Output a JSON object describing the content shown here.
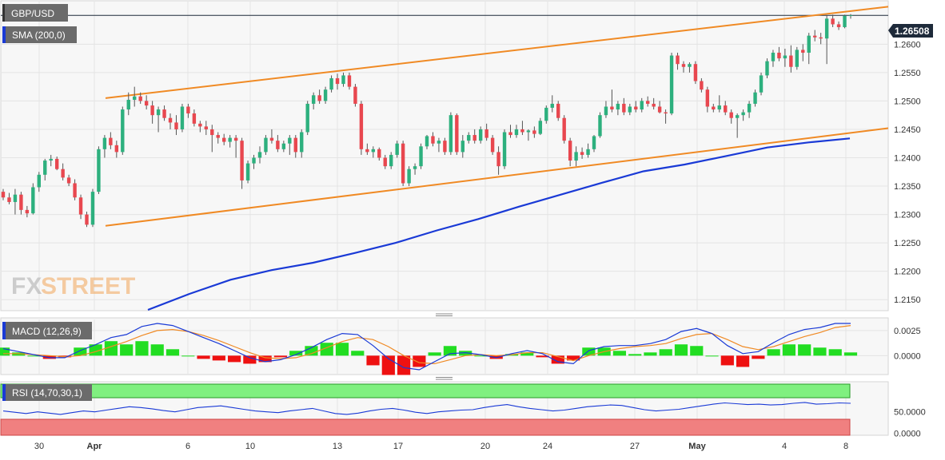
{
  "symbol": "GBP/USD",
  "overlay_label": "SMA (200,0)",
  "macd_label": "MACD (12,26,9)",
  "rsi_label": "RSI (14,70,30,1)",
  "watermark": {
    "text_fx": "FX",
    "text_street": "STREET"
  },
  "colors": {
    "up": "#2db07e",
    "down": "#e8474f",
    "wick": "#555555",
    "sma": "#1a3ad6",
    "channel": "#f08a24",
    "macd_line": "#1a3ad6",
    "signal_line": "#f08a24",
    "hist_pos": "#22dd22",
    "hist_neg": "#ee1111",
    "rsi_line": "#1a3ad6",
    "overbought_zone": "#80f080",
    "oversold_zone": "#f08080",
    "label_bg": "#6b6b6b",
    "price_tag": "#1e2a3a"
  },
  "chart_data": [
    {
      "type": "candlestick",
      "title": "GBP/USD",
      "overlay": "SMA (200,0)",
      "x_tick_labels": [
        "30",
        "Apr",
        "6",
        "10",
        "13",
        "17",
        "20",
        "24",
        "27",
        "May",
        "4",
        "8"
      ],
      "y_ticks": [
        "1.2150",
        "1.2200",
        "1.2250",
        "1.2300",
        "1.2350",
        "1.2400",
        "1.2450",
        "1.2500",
        "1.2550",
        "1.2600"
      ],
      "ylim": [
        1.2132,
        1.2675
      ],
      "last_price": "1.26508",
      "sma_200": [
        1.2132,
        1.216,
        1.2185,
        1.2202,
        1.2215,
        1.2232,
        1.225,
        1.2272,
        1.2292,
        1.2314,
        1.2335,
        1.2356,
        1.2376,
        1.2388,
        1.2403,
        1.2418,
        1.2427,
        1.2434
      ],
      "channel_upper": [
        [
          1.2505,
          1.2666
        ]
      ],
      "channel_lower": [
        [
          1.228,
          1.2452
        ]
      ],
      "candles": [
        [
          1.234,
          1.2345,
          1.2325,
          1.233
        ],
        [
          1.233,
          1.2338,
          1.2318,
          1.2322
        ],
        [
          1.2322,
          1.2345,
          1.23,
          1.2335
        ],
        [
          1.2335,
          1.234,
          1.23,
          1.2308
        ],
        [
          1.2308,
          1.2315,
          1.2295,
          1.2302
        ],
        [
          1.2302,
          1.2355,
          1.23,
          1.2348
        ],
        [
          1.2348,
          1.2375,
          1.234,
          1.237
        ],
        [
          1.237,
          1.2398,
          1.236,
          1.2395
        ],
        [
          1.2395,
          1.2405,
          1.2385,
          1.2398
        ],
        [
          1.2398,
          1.2402,
          1.2378,
          1.238
        ],
        [
          1.238,
          1.239,
          1.236,
          1.2365
        ],
        [
          1.2365,
          1.237,
          1.235,
          1.2355
        ],
        [
          1.2355,
          1.2362,
          1.2325,
          1.233
        ],
        [
          1.233,
          1.2335,
          1.2292,
          1.23
        ],
        [
          1.23,
          1.2305,
          1.2278,
          1.2282
        ],
        [
          1.2282,
          1.2345,
          1.2278,
          1.234
        ],
        [
          1.234,
          1.242,
          1.2336,
          1.2415
        ],
        [
          1.2415,
          1.244,
          1.24,
          1.2435
        ],
        [
          1.2435,
          1.2445,
          1.2415,
          1.2422
        ],
        [
          1.2422,
          1.243,
          1.24,
          1.241
        ],
        [
          1.241,
          1.249,
          1.2405,
          1.2485
        ],
        [
          1.2485,
          1.2515,
          1.2475,
          1.2502
        ],
        [
          1.2502,
          1.2525,
          1.249,
          1.2508
        ],
        [
          1.2508,
          1.2515,
          1.2495,
          1.25
        ],
        [
          1.25,
          1.251,
          1.2485,
          1.2492
        ],
        [
          1.2492,
          1.25,
          1.246,
          1.2475
        ],
        [
          1.2475,
          1.249,
          1.2445,
          1.2485
        ],
        [
          1.2485,
          1.2492,
          1.2465,
          1.247
        ],
        [
          1.247,
          1.2478,
          1.245,
          1.2462
        ],
        [
          1.2462,
          1.2475,
          1.244,
          1.245
        ],
        [
          1.245,
          1.2495,
          1.2445,
          1.249
        ],
        [
          1.249,
          1.2495,
          1.247,
          1.2478
        ],
        [
          1.2478,
          1.2485,
          1.2455,
          1.246
        ],
        [
          1.246,
          1.2465,
          1.2445,
          1.2455
        ],
        [
          1.2455,
          1.2465,
          1.244,
          1.245
        ],
        [
          1.245,
          1.2458,
          1.241,
          1.244
        ],
        [
          1.244,
          1.2445,
          1.2425,
          1.2435
        ],
        [
          1.2435,
          1.2442,
          1.2422,
          1.2428
        ],
        [
          1.2428,
          1.244,
          1.2418,
          1.2435
        ],
        [
          1.2435,
          1.244,
          1.24,
          1.243
        ],
        [
          1.243,
          1.2435,
          1.2345,
          1.236
        ],
        [
          1.236,
          1.2395,
          1.2355,
          1.239
        ],
        [
          1.239,
          1.2405,
          1.238,
          1.24
        ],
        [
          1.24,
          1.242,
          1.239,
          1.241
        ],
        [
          1.241,
          1.244,
          1.2405,
          1.2435
        ],
        [
          1.2435,
          1.245,
          1.2425,
          1.243
        ],
        [
          1.243,
          1.244,
          1.241,
          1.2415
        ],
        [
          1.2415,
          1.243,
          1.241,
          1.2425
        ],
        [
          1.2425,
          1.244,
          1.2405,
          1.2435
        ],
        [
          1.2435,
          1.244,
          1.24,
          1.241
        ],
        [
          1.241,
          1.245,
          1.24,
          1.2445
        ],
        [
          1.2445,
          1.25,
          1.244,
          1.2495
        ],
        [
          1.2495,
          1.2515,
          1.2485,
          1.251
        ],
        [
          1.251,
          1.252,
          1.2495,
          1.25
        ],
        [
          1.25,
          1.2525,
          1.2495,
          1.252
        ],
        [
          1.252,
          1.2545,
          1.2515,
          1.254
        ],
        [
          1.254,
          1.2548,
          1.252,
          1.253
        ],
        [
          1.253,
          1.255,
          1.2525,
          1.2545
        ],
        [
          1.2545,
          1.255,
          1.252,
          1.2525
        ],
        [
          1.2525,
          1.253,
          1.249,
          1.2495
        ],
        [
          1.2495,
          1.25,
          1.2405,
          1.2415
        ],
        [
          1.2415,
          1.2425,
          1.2405,
          1.241
        ],
        [
          1.241,
          1.242,
          1.24,
          1.2415
        ],
        [
          1.2415,
          1.2418,
          1.2395,
          1.24
        ],
        [
          1.24,
          1.2405,
          1.238,
          1.2385
        ],
        [
          1.2385,
          1.241,
          1.238,
          1.2405
        ],
        [
          1.2405,
          1.243,
          1.24,
          1.2425
        ],
        [
          1.2425,
          1.243,
          1.235,
          1.2355
        ],
        [
          1.2355,
          1.2385,
          1.235,
          1.238
        ],
        [
          1.238,
          1.239,
          1.237,
          1.2385
        ],
        [
          1.2385,
          1.2425,
          1.238,
          1.242
        ],
        [
          1.242,
          1.244,
          1.2415,
          1.2438
        ],
        [
          1.2438,
          1.2445,
          1.242,
          1.2425
        ],
        [
          1.2425,
          1.2435,
          1.241,
          1.243
        ],
        [
          1.243,
          1.2435,
          1.2405,
          1.241
        ],
        [
          1.241,
          1.248,
          1.2405,
          1.2475
        ],
        [
          1.2475,
          1.2478,
          1.2405,
          1.241
        ],
        [
          1.241,
          1.244,
          1.24,
          1.243
        ],
        [
          1.243,
          1.2445,
          1.2425,
          1.244
        ],
        [
          1.244,
          1.245,
          1.2425,
          1.243
        ],
        [
          1.243,
          1.2455,
          1.2425,
          1.245
        ],
        [
          1.245,
          1.246,
          1.243,
          1.2435
        ],
        [
          1.2435,
          1.244,
          1.2405,
          1.241
        ],
        [
          1.241,
          1.242,
          1.237,
          1.2385
        ],
        [
          1.2385,
          1.245,
          1.238,
          1.2445
        ],
        [
          1.2445,
          1.2458,
          1.2435,
          1.244
        ],
        [
          1.244,
          1.2458,
          1.2435,
          1.245
        ],
        [
          1.245,
          1.2465,
          1.244,
          1.2445
        ],
        [
          1.2445,
          1.245,
          1.243,
          1.2448
        ],
        [
          1.2448,
          1.2455,
          1.2435,
          1.2442
        ],
        [
          1.2442,
          1.247,
          1.244,
          1.2465
        ],
        [
          1.2465,
          1.2492,
          1.246,
          1.2488
        ],
        [
          1.2488,
          1.251,
          1.248,
          1.2495
        ],
        [
          1.2495,
          1.25,
          1.2465,
          1.247
        ],
        [
          1.247,
          1.2475,
          1.2425,
          1.243
        ],
        [
          1.243,
          1.2435,
          1.2385,
          1.2395
        ],
        [
          1.2395,
          1.242,
          1.2385,
          1.241
        ],
        [
          1.241,
          1.2418,
          1.2398,
          1.2405
        ],
        [
          1.2405,
          1.2425,
          1.24,
          1.2415
        ],
        [
          1.2415,
          1.244,
          1.241,
          1.2438
        ],
        [
          1.2438,
          1.248,
          1.2435,
          1.2475
        ],
        [
          1.2475,
          1.25,
          1.247,
          1.249
        ],
        [
          1.249,
          1.252,
          1.248,
          1.2485
        ],
        [
          1.2485,
          1.25,
          1.2475,
          1.2495
        ],
        [
          1.2495,
          1.2505,
          1.2475,
          1.248
        ],
        [
          1.248,
          1.2495,
          1.2475,
          1.249
        ],
        [
          1.249,
          1.25,
          1.248,
          1.2485
        ],
        [
          1.2485,
          1.2505,
          1.248,
          1.25
        ],
        [
          1.25,
          1.2508,
          1.249,
          1.2495
        ],
        [
          1.2495,
          1.2505,
          1.2485,
          1.249
        ],
        [
          1.249,
          1.25,
          1.2478,
          1.248
        ],
        [
          1.248,
          1.2485,
          1.246,
          1.2478
        ],
        [
          1.2478,
          1.2585,
          1.2475,
          1.258
        ],
        [
          1.258,
          1.2585,
          1.2555,
          1.2565
        ],
        [
          1.2565,
          1.257,
          1.255,
          1.256
        ],
        [
          1.256,
          1.2568,
          1.255,
          1.2565
        ],
        [
          1.2565,
          1.257,
          1.253,
          1.2535
        ],
        [
          1.2535,
          1.254,
          1.2515,
          1.252
        ],
        [
          1.252,
          1.2525,
          1.248,
          1.249
        ],
        [
          1.249,
          1.2495,
          1.248,
          1.2485
        ],
        [
          1.2485,
          1.251,
          1.248,
          1.2492
        ],
        [
          1.2492,
          1.25,
          1.2475,
          1.248
        ],
        [
          1.248,
          1.2485,
          1.246,
          1.247
        ],
        [
          1.247,
          1.2478,
          1.2435,
          1.2475
        ],
        [
          1.2475,
          1.2485,
          1.2465,
          1.248
        ],
        [
          1.248,
          1.25,
          1.247,
          1.2495
        ],
        [
          1.2495,
          1.252,
          1.249,
          1.2515
        ],
        [
          1.2515,
          1.255,
          1.251,
          1.2545
        ],
        [
          1.2545,
          1.2575,
          1.254,
          1.257
        ],
        [
          1.257,
          1.259,
          1.256,
          1.2585
        ],
        [
          1.2585,
          1.2595,
          1.257,
          1.2575
        ],
        [
          1.2575,
          1.2592,
          1.256,
          1.258
        ],
        [
          1.258,
          1.2598,
          1.255,
          1.256
        ],
        [
          1.256,
          1.2595,
          1.2555,
          1.259
        ],
        [
          1.259,
          1.26,
          1.257,
          1.2585
        ],
        [
          1.2585,
          1.262,
          1.2565,
          1.2615
        ],
        [
          1.2615,
          1.2625,
          1.2605,
          1.2612
        ],
        [
          1.2612,
          1.262,
          1.26,
          1.261
        ],
        [
          1.261,
          1.265,
          1.2565,
          1.2645
        ],
        [
          1.2645,
          1.2652,
          1.263,
          1.2635
        ],
        [
          1.2635,
          1.264,
          1.2625,
          1.263
        ],
        [
          1.263,
          1.2652,
          1.2628,
          1.265
        ],
        [
          1.265,
          1.2653,
          1.2645,
          1.2651
        ]
      ]
    },
    {
      "type": "macd",
      "title": "MACD (12,26,9)",
      "y_ticks": [
        "0.0025",
        "0.0000"
      ],
      "ylim": [
        -0.0018,
        0.0036
      ],
      "macd": [
        0.0007,
        0.0004,
        0.0001,
        -0.0002,
        -0.0002,
        0.0005,
        0.0011,
        0.0018,
        0.0021,
        0.0029,
        0.0032,
        0.003,
        0.0024,
        0.0018,
        0.0012,
        0.0005,
        -0.0002,
        -0.0006,
        -0.0004,
        0.0001,
        0.0008,
        0.0016,
        0.0022,
        0.0021,
        0.001,
        -0.0003,
        -0.0012,
        -0.0014,
        -0.0006,
        0.0002,
        0.0003,
        0.0001,
        -0.0002,
        0.0002,
        0.0005,
        0.0002,
        -0.0006,
        -0.0008,
        0.0005,
        0.0009,
        0.001,
        0.001,
        0.0012,
        0.0016,
        0.0024,
        0.0027,
        0.0022,
        0.001,
        0.0002,
        0.0004,
        0.0013,
        0.0021,
        0.0026,
        0.0028,
        0.0032,
        0.0032
      ],
      "signal": [
        0.0002,
        0.0002,
        0.0001,
        0.0,
        -0.0001,
        0.0,
        0.0004,
        0.0009,
        0.0014,
        0.002,
        0.0025,
        0.0026,
        0.0024,
        0.002,
        0.0015,
        0.0009,
        0.0003,
        -0.0002,
        -0.0003,
        -0.0002,
        0.0002,
        0.0008,
        0.0014,
        0.0018,
        0.0016,
        0.0009,
        0.0,
        -0.0007,
        -0.0008,
        -0.0004,
        0.0,
        0.0001,
        0.0,
        0.0001,
        0.0003,
        0.0003,
        -0.0001,
        -0.0005,
        0.0,
        0.0004,
        0.0007,
        0.0009,
        0.001,
        0.0012,
        0.0017,
        0.0021,
        0.0022,
        0.0016,
        0.0009,
        0.0006,
        0.0009,
        0.0014,
        0.0019,
        0.0023,
        0.0028,
        0.003
      ]
    },
    {
      "type": "rsi",
      "title": "RSI (14,70,30,1)",
      "y_ticks": [
        "50.0000",
        "0.0000"
      ],
      "ylim": [
        -5,
        115
      ],
      "levels": [
        70,
        30
      ],
      "values": [
        52,
        49,
        46,
        50,
        47,
        44,
        48,
        52,
        50,
        54,
        58,
        62,
        60,
        57,
        53,
        50,
        55,
        60,
        62,
        64,
        60,
        56,
        52,
        50,
        48,
        52,
        55,
        58,
        52,
        46,
        44,
        47,
        52,
        56,
        58,
        54,
        49,
        46,
        50,
        52,
        54,
        55,
        60,
        64,
        67,
        62,
        58,
        55,
        52,
        54,
        58,
        62,
        64,
        66,
        65,
        60,
        55,
        52,
        54,
        56,
        60,
        64,
        68,
        71,
        69,
        67,
        68,
        66,
        67,
        70,
        72,
        68,
        69,
        71,
        70
      ]
    }
  ]
}
